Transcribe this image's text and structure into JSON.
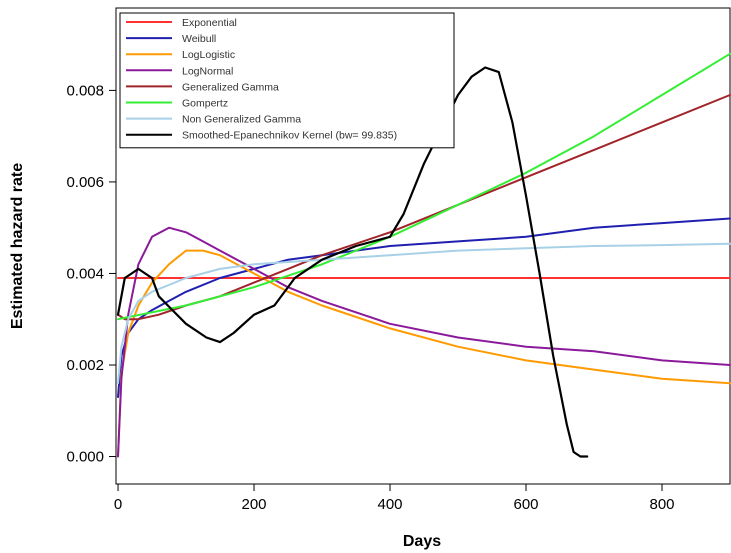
{
  "chart_data": {
    "type": "line",
    "title": "",
    "xlabel": "Days",
    "ylabel": "Estimated hazard rate",
    "xlim": [
      -3,
      900
    ],
    "ylim": [
      -0.0006,
      0.0098
    ],
    "x_ticks": [
      0,
      200,
      400,
      600,
      800
    ],
    "x_tick_labels": [
      "0",
      "200",
      "400",
      "600",
      "800"
    ],
    "y_ticks": [
      0.0,
      0.002,
      0.004,
      0.006,
      0.008
    ],
    "y_tick_labels": [
      "0.000",
      "0.002",
      "0.004",
      "0.006",
      "0.008"
    ],
    "grid": false,
    "legend_position": "top-left",
    "series": [
      {
        "name": "Exponential",
        "color": "#ff3030",
        "x": [
          0,
          900
        ],
        "y": [
          0.0039,
          0.0039
        ]
      },
      {
        "name": "Weibull",
        "color": "#2020b0",
        "x": [
          0,
          5,
          15,
          30,
          50,
          75,
          100,
          150,
          200,
          250,
          300,
          400,
          500,
          600,
          700,
          800,
          900
        ],
        "y": [
          0.0013,
          0.0022,
          0.0027,
          0.003,
          0.0032,
          0.0034,
          0.0036,
          0.0039,
          0.0041,
          0.0043,
          0.0044,
          0.0046,
          0.0047,
          0.0048,
          0.005,
          0.0051,
          0.0052
        ]
      },
      {
        "name": "LogLogistic",
        "color": "#ff9a00",
        "x": [
          0,
          5,
          15,
          30,
          50,
          75,
          100,
          125,
          150,
          200,
          250,
          300,
          400,
          500,
          600,
          700,
          800,
          900
        ],
        "y": [
          0.0,
          0.0018,
          0.0027,
          0.0033,
          0.0038,
          0.0042,
          0.0045,
          0.0045,
          0.0044,
          0.004,
          0.0036,
          0.0033,
          0.0028,
          0.0024,
          0.0021,
          0.0019,
          0.0017,
          0.0016
        ]
      },
      {
        "name": "LogNormal",
        "color": "#8b1a9b",
        "x": [
          0,
          5,
          15,
          30,
          50,
          75,
          100,
          125,
          150,
          200,
          250,
          300,
          400,
          500,
          600,
          700,
          800,
          900
        ],
        "y": [
          0.0,
          0.0017,
          0.0031,
          0.0042,
          0.0048,
          0.005,
          0.0049,
          0.0047,
          0.0045,
          0.0041,
          0.0037,
          0.0034,
          0.0029,
          0.0026,
          0.0024,
          0.0023,
          0.0021,
          0.002
        ]
      },
      {
        "name": "Generalized Gamma",
        "color": "#a0242a",
        "x": [
          0,
          10,
          30,
          60,
          100,
          150,
          200,
          250,
          300,
          400,
          500,
          600,
          700,
          800,
          900
        ],
        "y": [
          0.0031,
          0.003,
          0.003,
          0.0031,
          0.0033,
          0.0035,
          0.0038,
          0.0041,
          0.0044,
          0.0049,
          0.0055,
          0.0061,
          0.0067,
          0.0073,
          0.0079
        ]
      },
      {
        "name": "Gompertz",
        "color": "#33ee33",
        "x": [
          0,
          100,
          200,
          300,
          400,
          500,
          600,
          700,
          800,
          900
        ],
        "y": [
          0.003,
          0.0033,
          0.0037,
          0.0042,
          0.0048,
          0.0055,
          0.0062,
          0.007,
          0.0079,
          0.0088
        ]
      },
      {
        "name": "Non Generalized Gamma",
        "color": "#a8d0e6",
        "x": [
          0,
          5,
          15,
          30,
          50,
          100,
          150,
          200,
          300,
          400,
          500,
          600,
          700,
          800,
          900
        ],
        "y": [
          0.0016,
          0.0024,
          0.003,
          0.0034,
          0.0036,
          0.0039,
          0.0041,
          0.0042,
          0.0043,
          0.0044,
          0.0045,
          0.00455,
          0.0046,
          0.00462,
          0.00465
        ]
      },
      {
        "name": "Smoothed-Epanechnikov Kernel (bw= 99.835)",
        "color": "#000000",
        "x": [
          0,
          10,
          20,
          30,
          40,
          50,
          60,
          80,
          100,
          130,
          150,
          170,
          200,
          230,
          260,
          300,
          350,
          400,
          420,
          450,
          480,
          500,
          520,
          540,
          560,
          580,
          600,
          620,
          640,
          660,
          670,
          680,
          690
        ],
        "y": [
          0.0031,
          0.0039,
          0.004,
          0.0041,
          0.004,
          0.0039,
          0.0035,
          0.0032,
          0.0029,
          0.0026,
          0.0025,
          0.0027,
          0.0031,
          0.0033,
          0.0039,
          0.0043,
          0.0046,
          0.0048,
          0.0053,
          0.0064,
          0.0073,
          0.0079,
          0.0083,
          0.0085,
          0.0084,
          0.0073,
          0.0057,
          0.004,
          0.0022,
          0.0007,
          0.0001,
          0.0,
          0.0
        ]
      }
    ]
  }
}
